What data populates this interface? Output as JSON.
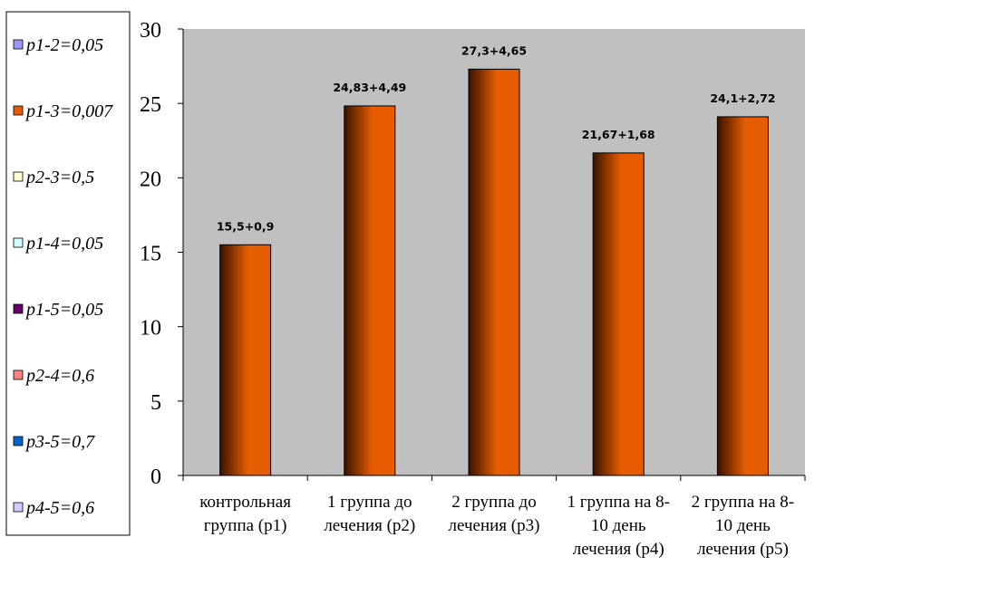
{
  "chart_data": {
    "type": "bar",
    "categories": [
      [
        "контрольная",
        "группа (р1)"
      ],
      [
        "1 группа до",
        "лечения (р2)"
      ],
      [
        "2 группа до",
        "лечения (р3)"
      ],
      [
        "1 группа на 8-",
        "10 день",
        "лечения (р4)"
      ],
      [
        "2 группа на 8-",
        "10 день",
        "лечения (р5)"
      ]
    ],
    "values": [
      15.5,
      24.83,
      27.3,
      21.67,
      24.1
    ],
    "data_labels": [
      "15,5+0,9",
      "24,83+4,49",
      "27,3+4,65",
      "21,67+1,68",
      "24,1+2,72"
    ],
    "ylim": [
      0,
      30
    ],
    "yticks": [
      0,
      5,
      10,
      15,
      20,
      25,
      30
    ],
    "bar_color": "#e65c00",
    "bar_dark_color": "#3a1200",
    "plot_background": "#c0c0c0",
    "gridlines": false,
    "legend_position": "left",
    "legend": [
      {
        "label": "p1-2=0,05",
        "color": "#9999ff"
      },
      {
        "label": "p1-3=0,007",
        "color": "#e65c00"
      },
      {
        "label": "p2-3=0,5",
        "color": "#ffffcc"
      },
      {
        "label": "p1-4=0,05",
        "color": "#ccffff"
      },
      {
        "label": "p1-5=0,05",
        "color": "#660066"
      },
      {
        "label": "p2-4=0,6",
        "color": "#ff8080"
      },
      {
        "label": "p3-5=0,7",
        "color": "#0066cc"
      },
      {
        "label": "p4-5=0,6",
        "color": "#ccccff"
      }
    ]
  }
}
